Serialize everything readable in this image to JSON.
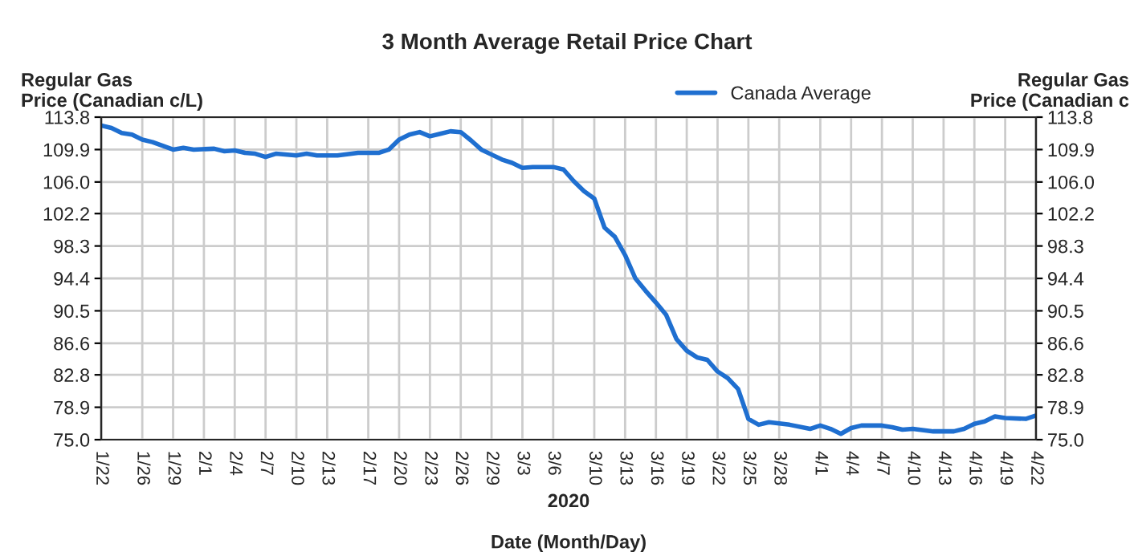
{
  "chart_data": {
    "type": "line",
    "title": "3 Month Average Retail Price Chart",
    "xlabel": "Date (Month/Day)",
    "ylabel": "Regular Gas\nPrice (Canadian c/L)",
    "y2label": "Regular Gas\nPrice (Canadian c",
    "annotations": [
      "2020"
    ],
    "x": [
      "2020-01-22",
      "2020-01-23",
      "2020-01-24",
      "2020-01-25",
      "2020-01-26",
      "2020-01-27",
      "2020-01-29",
      "2020-01-30",
      "2020-01-31",
      "2020-02-02",
      "2020-02-03",
      "2020-02-04",
      "2020-02-05",
      "2020-02-06",
      "2020-02-07",
      "2020-02-08",
      "2020-02-10",
      "2020-02-11",
      "2020-02-12",
      "2020-02-14",
      "2020-02-16",
      "2020-02-18",
      "2020-02-19",
      "2020-02-20",
      "2020-02-21",
      "2020-02-22",
      "2020-02-23",
      "2020-02-24",
      "2020-02-25",
      "2020-02-26",
      "2020-02-27",
      "2020-02-28",
      "2020-02-29",
      "2020-03-01",
      "2020-03-02",
      "2020-03-03",
      "2020-03-04",
      "2020-03-06",
      "2020-03-07",
      "2020-03-08",
      "2020-03-09",
      "2020-03-10",
      "2020-03-11",
      "2020-03-12",
      "2020-03-13",
      "2020-03-14",
      "2020-03-15",
      "2020-03-16",
      "2020-03-17",
      "2020-03-18",
      "2020-03-19",
      "2020-03-20",
      "2020-03-21",
      "2020-03-22",
      "2020-03-23",
      "2020-03-24",
      "2020-03-25",
      "2020-03-26",
      "2020-03-27",
      "2020-03-29",
      "2020-03-31",
      "2020-04-01",
      "2020-04-02",
      "2020-04-03",
      "2020-04-04",
      "2020-04-05",
      "2020-04-07",
      "2020-04-08",
      "2020-04-09",
      "2020-04-10",
      "2020-04-12",
      "2020-04-14",
      "2020-04-15",
      "2020-04-16",
      "2020-04-17",
      "2020-04-18",
      "2020-04-19",
      "2020-04-21",
      "2020-04-22"
    ],
    "series": [
      {
        "name": "Canada Average",
        "color": "#1f6fd0",
        "values": [
          112.8,
          112.5,
          111.9,
          111.7,
          111.1,
          110.8,
          109.9,
          110.1,
          109.9,
          110.0,
          109.7,
          109.8,
          109.5,
          109.4,
          109.0,
          109.4,
          109.2,
          109.4,
          109.2,
          109.2,
          109.5,
          109.5,
          109.9,
          111.1,
          111.7,
          112.0,
          111.5,
          111.8,
          112.1,
          112.0,
          111.0,
          109.9,
          109.3,
          108.7,
          108.3,
          107.7,
          107.8,
          107.8,
          107.5,
          106.1,
          104.9,
          104.0,
          100.5,
          99.4,
          97.2,
          94.4,
          92.9,
          91.5,
          90.0,
          87.1,
          85.7,
          84.9,
          84.6,
          83.2,
          82.4,
          81.1,
          77.5,
          76.8,
          77.1,
          76.8,
          76.3,
          76.7,
          76.3,
          75.7,
          76.4,
          76.7,
          76.7,
          76.5,
          76.2,
          76.3,
          76.0,
          76.0,
          76.3,
          76.9,
          77.2,
          77.8,
          77.6,
          77.5,
          77.9
        ]
      }
    ],
    "xlim": [
      "2020-01-22",
      "2020-04-22"
    ],
    "xticks": [
      {
        "value": "2020-01-22",
        "label": "1/22"
      },
      {
        "value": "2020-01-26",
        "label": "1/26"
      },
      {
        "value": "2020-01-29",
        "label": "1/29"
      },
      {
        "value": "2020-02-01",
        "label": "2/1"
      },
      {
        "value": "2020-02-04",
        "label": "2/4"
      },
      {
        "value": "2020-02-07",
        "label": "2/7"
      },
      {
        "value": "2020-02-10",
        "label": "2/10"
      },
      {
        "value": "2020-02-13",
        "label": "2/13"
      },
      {
        "value": "2020-02-17",
        "label": "2/17"
      },
      {
        "value": "2020-02-20",
        "label": "2/20"
      },
      {
        "value": "2020-02-23",
        "label": "2/23"
      },
      {
        "value": "2020-02-26",
        "label": "2/26"
      },
      {
        "value": "2020-02-29",
        "label": "2/29"
      },
      {
        "value": "2020-03-03",
        "label": "3/3"
      },
      {
        "value": "2020-03-06",
        "label": "3/6"
      },
      {
        "value": "2020-03-10",
        "label": "3/10"
      },
      {
        "value": "2020-03-13",
        "label": "3/13"
      },
      {
        "value": "2020-03-16",
        "label": "3/16"
      },
      {
        "value": "2020-03-19",
        "label": "3/19"
      },
      {
        "value": "2020-03-22",
        "label": "3/22"
      },
      {
        "value": "2020-03-25",
        "label": "3/25"
      },
      {
        "value": "2020-03-28",
        "label": "3/28"
      },
      {
        "value": "2020-04-01",
        "label": "4/1"
      },
      {
        "value": "2020-04-04",
        "label": "4/4"
      },
      {
        "value": "2020-04-07",
        "label": "4/7"
      },
      {
        "value": "2020-04-10",
        "label": "4/10"
      },
      {
        "value": "2020-04-13",
        "label": "4/13"
      },
      {
        "value": "2020-04-16",
        "label": "4/16"
      },
      {
        "value": "2020-04-19",
        "label": "4/19"
      },
      {
        "value": "2020-04-22",
        "label": "4/22"
      }
    ],
    "ylim": [
      75.0,
      113.8
    ],
    "yticks": [
      {
        "value": 75.0,
        "label": "75.0"
      },
      {
        "value": 78.9,
        "label": "78.9"
      },
      {
        "value": 82.8,
        "label": "82.8"
      },
      {
        "value": 86.6,
        "label": "86.6"
      },
      {
        "value": 90.5,
        "label": "90.5"
      },
      {
        "value": 94.4,
        "label": "94.4"
      },
      {
        "value": 98.3,
        "label": "98.3"
      },
      {
        "value": 102.2,
        "label": "102.2"
      },
      {
        "value": 106.0,
        "label": "106.0"
      },
      {
        "value": 109.9,
        "label": "109.9"
      },
      {
        "value": 113.8,
        "label": "113.8"
      }
    ],
    "y2lim": [
      75.0,
      113.8
    ],
    "y2ticks": [
      {
        "value": 75.0,
        "label": "75.0"
      },
      {
        "value": 78.9,
        "label": "78.9"
      },
      {
        "value": 82.8,
        "label": "82.8"
      },
      {
        "value": 86.6,
        "label": "86.6"
      },
      {
        "value": 90.5,
        "label": "90.5"
      },
      {
        "value": 94.4,
        "label": "94.4"
      },
      {
        "value": 98.3,
        "label": "98.3"
      },
      {
        "value": 102.2,
        "label": "102.2"
      },
      {
        "value": 106.0,
        "label": "106.0"
      },
      {
        "value": 109.9,
        "label": "109.9"
      },
      {
        "value": 113.8,
        "label": "113.8"
      }
    ],
    "grid": true,
    "legend": "top",
    "marker": "none",
    "line_style": "solid"
  }
}
